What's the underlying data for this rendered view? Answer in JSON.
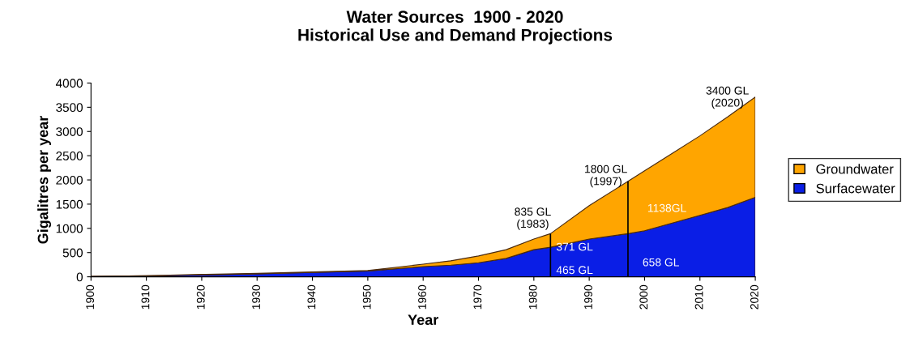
{
  "chart_data": {
    "type": "area",
    "stacked": true,
    "title": "Water Sources  1900 - 2020\nHistorical Use and Demand Projections",
    "xlabel": "Year",
    "ylabel": "Gigalitres per year",
    "x": [
      1900,
      1910,
      1920,
      1930,
      1940,
      1950,
      1960,
      1965,
      1970,
      1975,
      1980,
      1983,
      1990,
      1997,
      2000,
      2005,
      2010,
      2015,
      2020
    ],
    "series": [
      {
        "name": "Surfacewater",
        "color": "#0a1ee6",
        "values": [
          10,
          20,
          40,
          60,
          90,
          120,
          210,
          240,
          290,
          380,
          560,
          610,
          780,
          890,
          950,
          1110,
          1270,
          1430,
          1640
        ]
      },
      {
        "name": "Groundwater",
        "color": "#ffa500",
        "values": [
          0,
          0,
          10,
          10,
          10,
          10,
          50,
          90,
          140,
          180,
          220,
          280,
          690,
          1080,
          1240,
          1440,
          1640,
          1870,
          2070
        ]
      }
    ],
    "xlim": [
      1900,
      2020
    ],
    "xticks": [
      1900,
      1910,
      1920,
      1930,
      1940,
      1950,
      1960,
      1970,
      1980,
      1990,
      2000,
      2010,
      2020
    ],
    "ylim": [
      0,
      4000
    ],
    "yticks": [
      0,
      500,
      1000,
      1500,
      2000,
      2500,
      3000,
      3500,
      4000
    ],
    "ref_lines": [
      {
        "axis": "x",
        "value": 1983
      },
      {
        "axis": "x",
        "value": 1997
      }
    ],
    "annotations": [
      "835 GL\n(1983)",
      "1800 GL\n(1997)",
      "3400 GL\n(2020)",
      "371 GL",
      "465 GL",
      "1138GL",
      "658 GL"
    ],
    "legend": "right",
    "grid": false
  }
}
